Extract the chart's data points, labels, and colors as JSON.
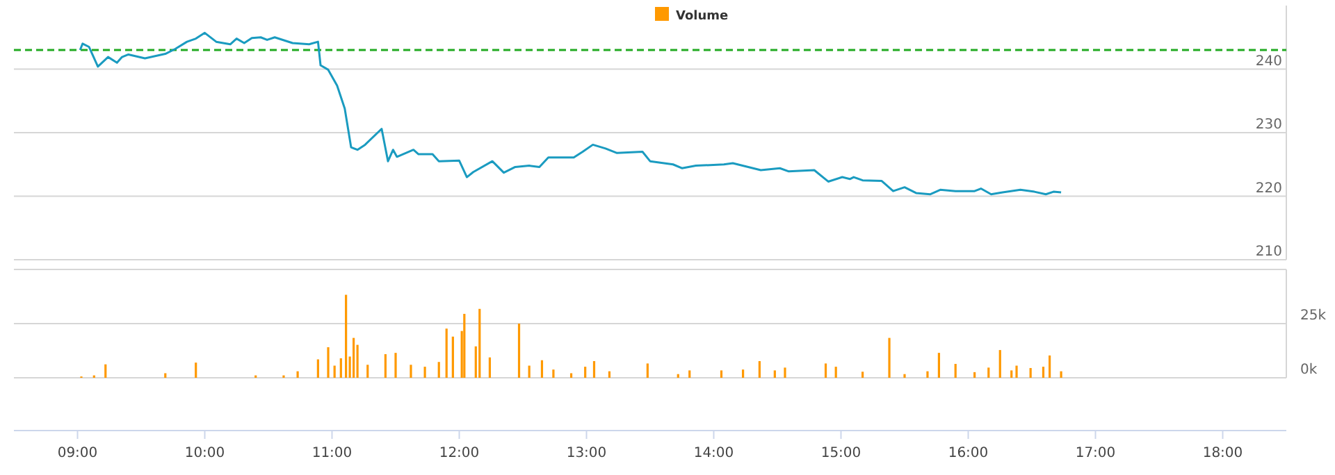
{
  "chart_data": [
    {
      "type": "line",
      "xlim": [
        8.5,
        18.5
      ],
      "ylim": [
        210,
        250
      ],
      "yticks": [
        210,
        220,
        230,
        240
      ],
      "grid": "y",
      "tick_labels": "y",
      "legend": false,
      "ref_lines": [
        {
          "axis": "y",
          "value": 243,
          "color": "#22aa22",
          "line_style": "dashed"
        }
      ],
      "series": [
        {
          "color": "#1a9bc0",
          "x": [
            9.02,
            9.04,
            9.09,
            9.16,
            9.24,
            9.31,
            9.35,
            9.4,
            9.53,
            9.69,
            9.77,
            9.86,
            9.93,
            10.0,
            10.09,
            10.2,
            10.25,
            10.31,
            10.37,
            10.44,
            10.49,
            10.55,
            10.69,
            10.82,
            10.89,
            10.91,
            10.97,
            11.04,
            11.1,
            11.15,
            11.2,
            11.26,
            11.39,
            11.44,
            11.48,
            11.51,
            11.64,
            11.68,
            11.79,
            11.84,
            12.0,
            12.06,
            12.11,
            12.26,
            12.35,
            12.44,
            12.55,
            12.63,
            12.7,
            12.9,
            12.97,
            13.05,
            13.15,
            13.24,
            13.44,
            13.5,
            13.68,
            13.75,
            13.86,
            14.08,
            14.15,
            14.37,
            14.52,
            14.59,
            14.79,
            14.9,
            15.01,
            15.07,
            15.1,
            15.17,
            15.32,
            15.41,
            15.5,
            15.59,
            15.7,
            15.78,
            15.9,
            16.05,
            16.1,
            16.18,
            16.27,
            16.41,
            16.52,
            16.61,
            16.67,
            16.73
          ],
          "values": [
            243.0,
            244.0,
            243.5,
            240.4,
            241.9,
            241.0,
            241.9,
            242.3,
            241.7,
            242.4,
            243.2,
            244.3,
            244.8,
            245.7,
            244.3,
            243.9,
            244.8,
            244.1,
            244.9,
            245.0,
            244.6,
            245.0,
            244.1,
            243.9,
            244.3,
            240.6,
            239.9,
            237.4,
            233.8,
            227.7,
            227.3,
            228.1,
            230.6,
            225.5,
            227.3,
            226.2,
            227.3,
            226.6,
            226.6,
            225.5,
            225.6,
            223.0,
            223.8,
            225.5,
            223.7,
            224.6,
            224.8,
            224.6,
            226.1,
            226.1,
            227.0,
            228.1,
            227.5,
            226.8,
            227.0,
            225.5,
            225.0,
            224.4,
            224.8,
            225.0,
            225.2,
            224.1,
            224.4,
            223.9,
            224.1,
            222.3,
            223.0,
            222.7,
            223.0,
            222.5,
            222.4,
            220.8,
            221.4,
            220.5,
            220.3,
            221.0,
            220.8,
            220.8,
            221.2,
            220.3,
            220.6,
            221.0,
            220.7,
            220.3,
            220.7,
            220.6
          ]
        }
      ]
    },
    {
      "type": "bar",
      "xlim": [
        8.5,
        18.5
      ],
      "ylim": [
        0,
        50000
      ],
      "xticks": [
        {
          "value": 9,
          "label": "09:00"
        },
        {
          "value": 10,
          "label": "10:00"
        },
        {
          "value": 11,
          "label": "11:00"
        },
        {
          "value": 12,
          "label": "12:00"
        },
        {
          "value": 13,
          "label": "13:00"
        },
        {
          "value": 14,
          "label": "14:00"
        },
        {
          "value": 15,
          "label": "15:00"
        },
        {
          "value": 16,
          "label": "16:00"
        },
        {
          "value": 17,
          "label": "17:00"
        },
        {
          "value": 18,
          "label": "18:00"
        }
      ],
      "yticks": [
        {
          "value": 0,
          "label": "0k"
        },
        {
          "value": 25000,
          "label": "25k"
        }
      ],
      "grid": "y",
      "legend": "top",
      "series": [
        {
          "name": "Volume",
          "color": "#ff9900",
          "x": [
            9.03,
            9.13,
            9.22,
            9.69,
            9.93,
            10.4,
            10.62,
            10.73,
            10.89,
            10.97,
            11.02,
            11.07,
            11.11,
            11.14,
            11.17,
            11.2,
            11.28,
            11.42,
            11.5,
            11.62,
            11.73,
            11.84,
            11.9,
            11.95,
            12.02,
            12.04,
            12.13,
            12.16,
            12.24,
            12.47,
            12.55,
            12.65,
            12.74,
            12.88,
            12.99,
            13.06,
            13.18,
            13.48,
            13.72,
            13.81,
            14.06,
            14.23,
            14.36,
            14.48,
            14.56,
            14.88,
            14.96,
            15.17,
            15.38,
            15.5,
            15.68,
            15.77,
            15.9,
            16.05,
            16.16,
            16.25,
            16.34,
            16.38,
            16.49,
            16.59,
            16.64,
            16.73
          ],
          "values": [
            600,
            1100,
            6200,
            2100,
            7000,
            1100,
            1100,
            3000,
            8500,
            14100,
            5600,
            9000,
            38300,
            9800,
            18400,
            15200,
            6000,
            10900,
            11500,
            6000,
            5100,
            7300,
            22700,
            19000,
            21600,
            29500,
            14500,
            31800,
            9400,
            25000,
            5600,
            8100,
            3800,
            2100,
            5100,
            7700,
            3000,
            6600,
            1700,
            3400,
            3400,
            3800,
            7700,
            3400,
            4700,
            6600,
            5100,
            2800,
            18400,
            1700,
            3000,
            11500,
            6400,
            2600,
            4700,
            12800,
            3400,
            5600,
            4500,
            5100,
            10300,
            3000
          ]
        }
      ]
    }
  ]
}
